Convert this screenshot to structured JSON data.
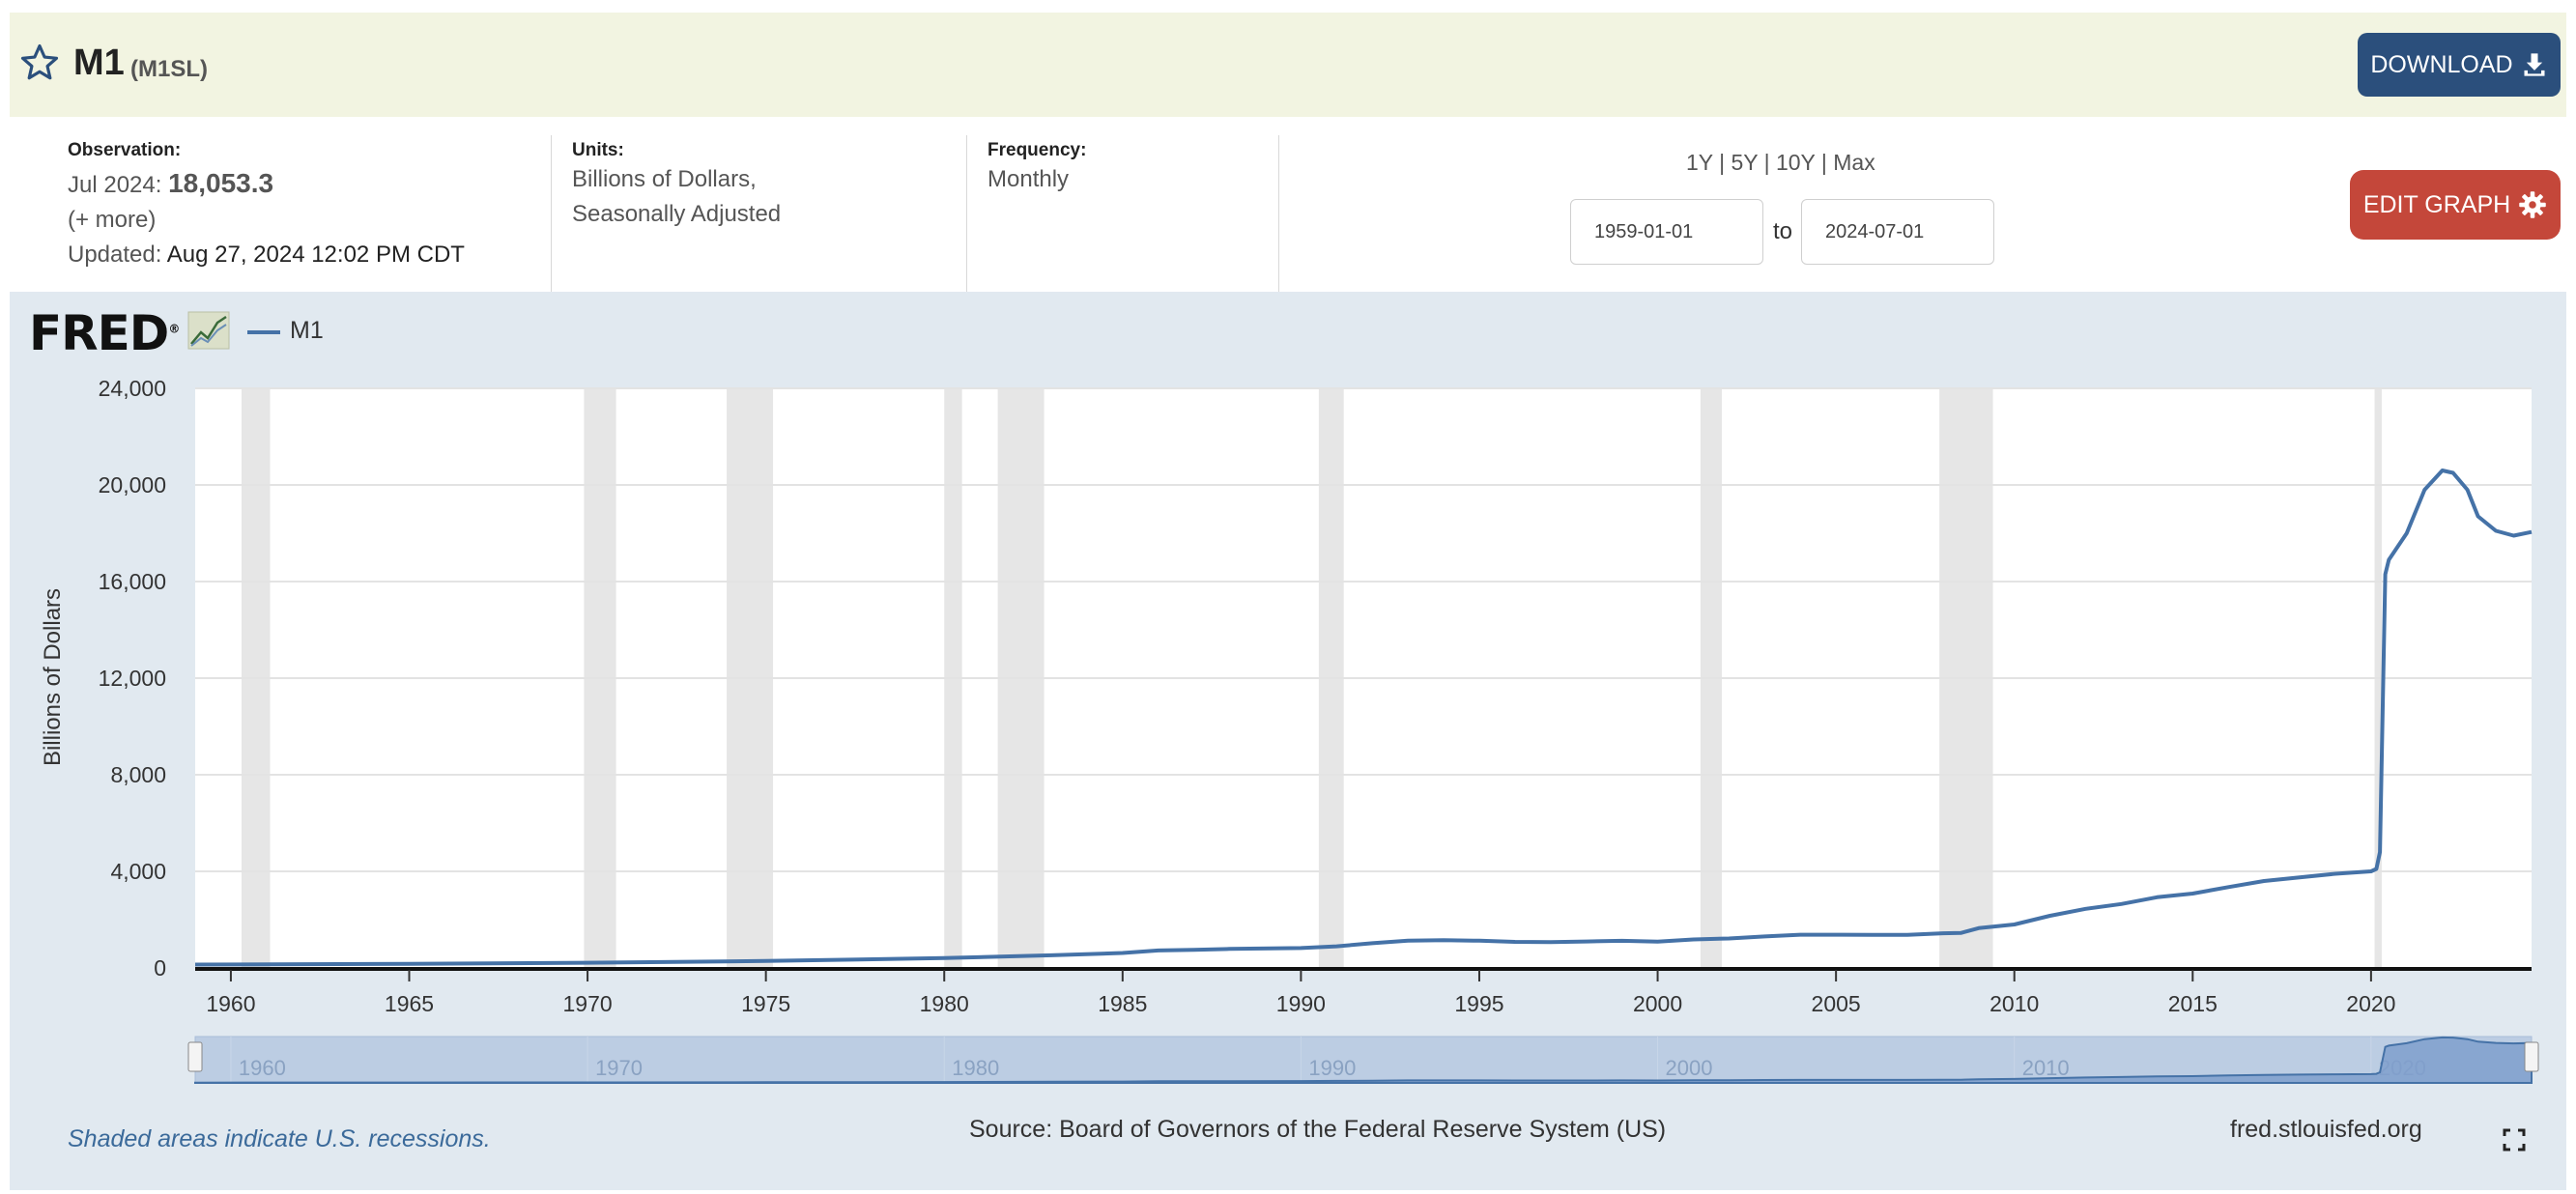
{
  "header": {
    "title": "M1",
    "series_id": "(M1SL)",
    "download_label": "DOWNLOAD"
  },
  "observation": {
    "label": "Observation:",
    "date": "Jul 2024:",
    "value": "18,053.3",
    "more": "(+ more)",
    "updated_label": "Updated:",
    "updated_value": "Aug 27, 2024 12:02 PM CDT"
  },
  "units": {
    "label": "Units:",
    "line1": "Billions of Dollars,",
    "line2": "Seasonally Adjusted"
  },
  "frequency": {
    "label": "Frequency:",
    "value": "Monthly"
  },
  "range": {
    "links": [
      "1Y",
      "5Y",
      "10Y",
      "Max"
    ],
    "start": "1959-01-01",
    "to_label": "to",
    "end": "2024-07-01"
  },
  "edit_label": "EDIT GRAPH",
  "logo_text": "FRED",
  "footer": {
    "note": "Shaded areas indicate U.S. recessions.",
    "source": "Source: Board of Governors of the Federal Reserve System (US)",
    "site": "fred.stlouisfed.org"
  },
  "colors": {
    "series": "#4572a7",
    "header_bg": "#f2f4e1",
    "panel_bg": "#e1e9f0",
    "download": "#2b4f7c",
    "edit": "#c4473a",
    "recession": "#e6e6e6"
  },
  "chart_data": {
    "type": "line",
    "ylabel": "Billions of Dollars",
    "xlim": [
      1959.0,
      2024.5
    ],
    "ylim": [
      0,
      24000
    ],
    "y_ticks": [
      0,
      4000,
      8000,
      12000,
      16000,
      20000,
      24000
    ],
    "y_tick_labels": [
      "0",
      "4,000",
      "8,000",
      "12,000",
      "16,000",
      "20,000",
      "24,000"
    ],
    "x_ticks": [
      1960,
      1965,
      1970,
      1975,
      1980,
      1985,
      1990,
      1995,
      2000,
      2005,
      2010,
      2015,
      2020
    ],
    "grid": true,
    "legend": "top-left",
    "recessions": [
      [
        1960.3,
        1961.1
      ],
      [
        1969.9,
        1970.8
      ],
      [
        1973.9,
        1975.2
      ],
      [
        1980.0,
        1980.5
      ],
      [
        1981.5,
        1982.8
      ],
      [
        1990.5,
        1991.2
      ],
      [
        2001.2,
        2001.8
      ],
      [
        2007.9,
        2009.4
      ],
      [
        2020.1,
        2020.3
      ]
    ],
    "navigator_ticks": [
      1960,
      1970,
      1980,
      1990,
      2000,
      2010,
      2020
    ],
    "series": [
      {
        "name": "M1",
        "x": [
          1959.0,
          1965.0,
          1970.0,
          1975.0,
          1980.0,
          1983.0,
          1985.0,
          1986.0,
          1987.0,
          1988.0,
          1990.0,
          1991.0,
          1992.0,
          1993.0,
          1994.0,
          1995.0,
          1996.0,
          1997.0,
          1998.0,
          1999.0,
          2000.0,
          2001.0,
          2002.0,
          2003.0,
          2004.0,
          2005.0,
          2006.0,
          2007.0,
          2008.0,
          2008.5,
          2009.0,
          2010.0,
          2011.0,
          2012.0,
          2013.0,
          2014.0,
          2015.0,
          2016.0,
          2017.0,
          2018.0,
          2019.0,
          2020.0,
          2020.15,
          2020.25,
          2020.4,
          2020.5,
          2021.0,
          2021.5,
          2022.0,
          2022.3,
          2022.7,
          2023.0,
          2023.5,
          2024.0,
          2024.5
        ],
        "values": [
          139,
          168,
          214,
          287,
          408,
          525,
          620,
          725,
          750,
          787,
          825,
          897,
          1025,
          1129,
          1150,
          1127,
          1081,
          1073,
          1095,
          1123,
          1087,
          1182,
          1220,
          1306,
          1376,
          1375,
          1367,
          1373,
          1434,
          1450,
          1650,
          1800,
          2160,
          2450,
          2650,
          2930,
          3080,
          3350,
          3600,
          3750,
          3900,
          4000,
          4100,
          4800,
          16300,
          16900,
          18000,
          19800,
          20600,
          20500,
          19800,
          18700,
          18100,
          17900,
          18053
        ]
      }
    ]
  }
}
